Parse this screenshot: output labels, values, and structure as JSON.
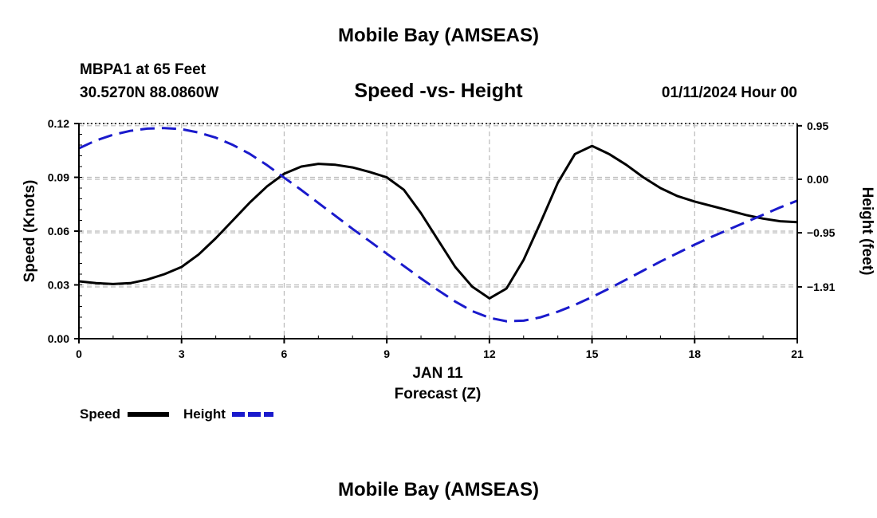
{
  "header": {
    "title": "Mobile Bay (AMSEAS)",
    "station_name": "MBPA1 at 65 Feet",
    "station_coords": "30.5270N  88.0860W",
    "chart_title": "Speed -vs- Height",
    "datetime": "01/11/2024 Hour 00"
  },
  "footer": {
    "title": "Mobile Bay (AMSEAS)"
  },
  "chart_data": {
    "type": "line",
    "title": "Speed -vs- Height",
    "xlabel": "Forecast (Z)",
    "date_label": "JAN 11",
    "ylabel": "Speed (Knots)",
    "y2label": "Height (feet)",
    "xlim": [
      0,
      21
    ],
    "ylim": [
      0,
      0.12
    ],
    "y2lim": [
      -2.83,
      0.99
    ],
    "x_ticks": [
      0,
      3,
      6,
      9,
      12,
      15,
      18,
      21
    ],
    "x_tick_labels": [
      "0",
      "3",
      "6",
      "9",
      "12",
      "15",
      "18",
      "21"
    ],
    "y_ticks": [
      0,
      0.03,
      0.06,
      0.09,
      0.12
    ],
    "y_tick_labels": [
      "0.00",
      "0.03",
      "0.06",
      "0.09",
      "0.12"
    ],
    "y2_ticks": [
      0.95,
      0.0,
      -0.95,
      -1.91
    ],
    "y2_tick_labels": [
      "0.95",
      "0.00",
      "−0.95",
      "−1.91"
    ],
    "grid": true,
    "legend_placement": "bottom-left",
    "series": [
      {
        "name": "Speed",
        "axis": "left",
        "color": "#000000",
        "style": "solid",
        "x": [
          0,
          0.5,
          1,
          1.5,
          2,
          2.5,
          3,
          3.5,
          4,
          4.5,
          5,
          5.5,
          6,
          6.5,
          7,
          7.5,
          8,
          8.5,
          9,
          9.5,
          10,
          10.5,
          11,
          11.5,
          12,
          12.5,
          13,
          13.5,
          14,
          14.5,
          15,
          15.5,
          16,
          16.5,
          17,
          17.5,
          18,
          18.5,
          19,
          19.5,
          20,
          20.5,
          21
        ],
        "values": [
          0.032,
          0.031,
          0.0305,
          0.031,
          0.033,
          0.036,
          0.04,
          0.047,
          0.056,
          0.066,
          0.076,
          0.085,
          0.092,
          0.096,
          0.0975,
          0.097,
          0.0955,
          0.093,
          0.09,
          0.083,
          0.07,
          0.055,
          0.04,
          0.029,
          0.0225,
          0.028,
          0.044,
          0.065,
          0.087,
          0.103,
          0.1075,
          0.103,
          0.097,
          0.09,
          0.084,
          0.0795,
          0.0765,
          0.074,
          0.0715,
          0.069,
          0.067,
          0.0655,
          0.065
        ]
      },
      {
        "name": "Height",
        "axis": "right",
        "color": "#1a1acc",
        "style": "dashed",
        "x": [
          0,
          0.5,
          1,
          1.5,
          2,
          2.5,
          3,
          3.5,
          4,
          4.5,
          5,
          5.5,
          6,
          6.5,
          7,
          7.5,
          8,
          8.5,
          9,
          9.5,
          10,
          10.5,
          11,
          11.5,
          12,
          12.5,
          13,
          13.5,
          14,
          14.5,
          15,
          15.5,
          16,
          16.5,
          17,
          17.5,
          18,
          18.5,
          19,
          19.5,
          20,
          20.5,
          21
        ],
        "values": [
          0.55,
          0.69,
          0.79,
          0.86,
          0.9,
          0.91,
          0.89,
          0.83,
          0.74,
          0.61,
          0.45,
          0.25,
          0.03,
          -0.19,
          -0.42,
          -0.65,
          -0.88,
          -1.1,
          -1.32,
          -1.54,
          -1.76,
          -1.97,
          -2.17,
          -2.34,
          -2.46,
          -2.52,
          -2.51,
          -2.45,
          -2.35,
          -2.23,
          -2.09,
          -1.94,
          -1.78,
          -1.62,
          -1.46,
          -1.31,
          -1.16,
          -1.02,
          -0.89,
          -0.76,
          -0.63,
          -0.5,
          -0.38
        ]
      }
    ]
  }
}
